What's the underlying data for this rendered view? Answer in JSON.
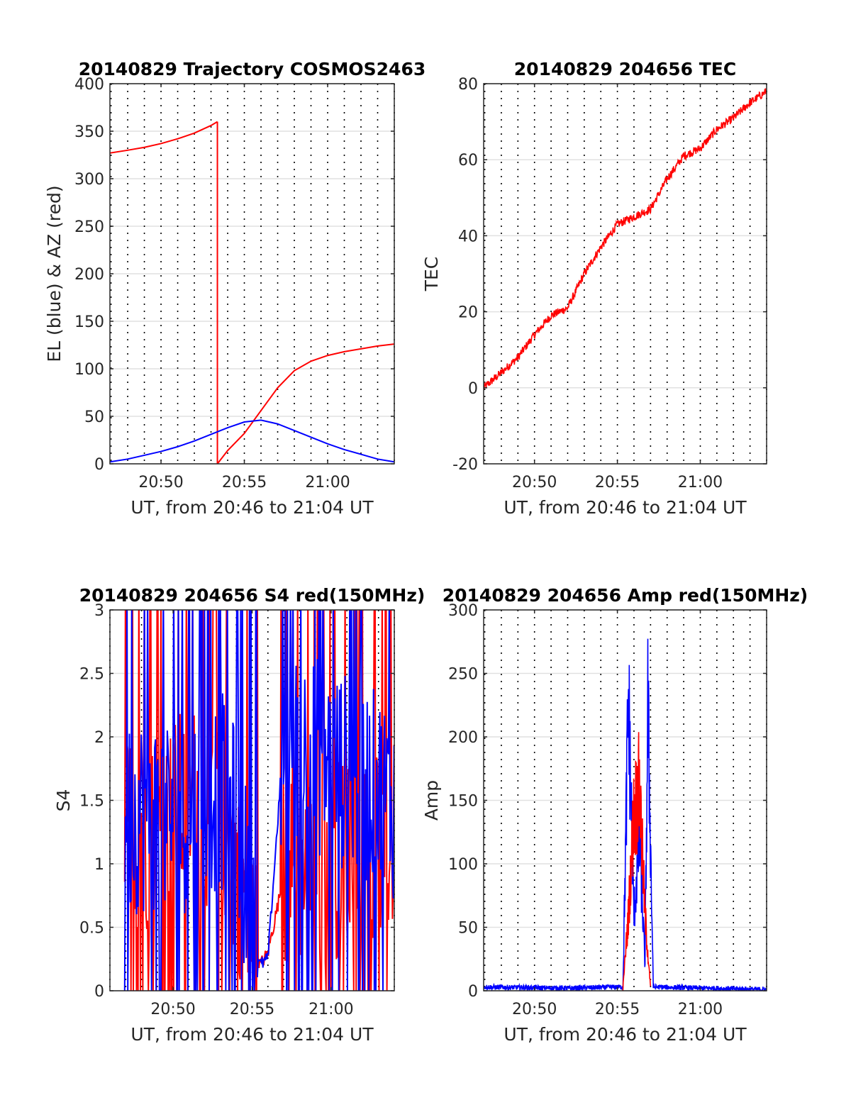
{
  "figure": {
    "background": "#ffffff"
  },
  "chart_data": [
    {
      "id": "trajectory",
      "type": "line",
      "title": "20140829 Trajectory COSMOS2463",
      "xlabel": "UT, from 20:46 to 21:04 UT",
      "ylabel": "EL (blue) & AZ (red)",
      "xlim": [
        "20:46:56",
        "21:04:00"
      ],
      "ylim": [
        0,
        400
      ],
      "xticks": [
        "20:50",
        "20:55",
        "21:00"
      ],
      "yticks": [
        "0",
        "50",
        "100",
        "150",
        "200",
        "250",
        "300",
        "350",
        "400"
      ],
      "grid": "horizontal solid, vertical dotted every minute",
      "series": [
        {
          "color": "#ff0000",
          "x": [
            "20:46:56",
            "20:48:00",
            "20:49:00",
            "20:50:00",
            "20:51:00",
            "20:52:00",
            "20:53:00",
            "20:53:23",
            "20:53:23",
            "20:54:00",
            "20:55:00",
            "20:56:00",
            "20:57:00",
            "20:58:00",
            "20:59:00",
            "21:00:00",
            "21:01:00",
            "21:02:00",
            "21:03:00",
            "21:04:00"
          ],
          "y": [
            327,
            330,
            333,
            337,
            342,
            348,
            356,
            360,
            0,
            14,
            32,
            56,
            80,
            98,
            108,
            114,
            118,
            121,
            124,
            126
          ]
        },
        {
          "color": "#0000ff",
          "x": [
            "20:46:56",
            "20:48:00",
            "20:49:00",
            "20:50:00",
            "20:51:00",
            "20:52:00",
            "20:53:00",
            "20:54:00",
            "20:55:00",
            "20:56:00",
            "20:57:00",
            "20:58:00",
            "20:59:00",
            "21:00:00",
            "21:01:00",
            "21:02:00",
            "21:03:00",
            "21:04:00"
          ],
          "y": [
            2,
            5,
            9,
            13,
            18,
            24,
            31,
            38,
            44,
            46,
            42,
            35,
            28,
            21,
            15,
            10,
            5,
            2
          ]
        }
      ]
    },
    {
      "id": "tec",
      "type": "line",
      "title": "20140829 204656 TEC",
      "xlabel": "UT, from 20:46 to 21:04 UT",
      "ylabel": "TEC",
      "xlim": [
        "20:46:56",
        "21:04:00"
      ],
      "ylim": [
        -20,
        80
      ],
      "xticks": [
        "20:50",
        "20:55",
        "21:00"
      ],
      "yticks": [
        "-20",
        "0",
        "20",
        "40",
        "60",
        "80"
      ],
      "grid": "horizontal solid, vertical dotted every minute",
      "series": [
        {
          "color": "#ff0000",
          "x": [
            "20:46:56",
            "20:48:00",
            "20:49:00",
            "20:50:00",
            "20:51:00",
            "20:52:00",
            "20:53:00",
            "20:54:00",
            "20:55:00",
            "20:56:00",
            "20:57:00",
            "20:58:00",
            "20:59:00",
            "21:00:00",
            "21:01:00",
            "21:02:00",
            "21:03:00",
            "21:04:00"
          ],
          "y": [
            0,
            4,
            8,
            14,
            19,
            21,
            30,
            37,
            43,
            45,
            47,
            55,
            61,
            63,
            68,
            71,
            75,
            78
          ]
        }
      ]
    },
    {
      "id": "s4",
      "type": "line",
      "title": "20140829 204656 S4 red(150MHz)",
      "xlabel": "UT, from 20:46 to 21:04 UT",
      "ylabel": "S4",
      "xlim": [
        "20:46:00",
        "21:04:00"
      ],
      "ylim": [
        0,
        3
      ],
      "xticks": [
        "20:50",
        "20:55",
        "21:00"
      ],
      "yticks": [
        "0",
        "0.5",
        "1",
        "1.5",
        "2",
        "2.5",
        "3"
      ],
      "grid": "horizontal solid, vertical dotted every minute",
      "series": [
        {
          "color": "#ff0000",
          "segments": [
            {
              "x": [
                "20:46:56",
                "20:49:00",
                "20:51:00",
                "20:53:00",
                "20:54:00",
                "20:55:30",
                "20:56:00",
                "20:57:00",
                "21:04:00"
              ],
              "y": [
                1.3,
                1.2,
                1.5,
                1.4,
                1.0,
                0.2,
                0.3,
                0.9,
                1.2
              ],
              "y_range": [
                0,
                3
              ]
            }
          ]
        },
        {
          "color": "#0000ff",
          "segments": [
            {
              "x": [
                "20:46:56",
                "20:49:00",
                "20:51:00",
                "20:53:00",
                "20:54:00",
                "20:55:30",
                "20:56:00",
                "20:57:00",
                "21:04:00"
              ],
              "y": [
                1.4,
                1.4,
                1.4,
                1.6,
                1.3,
                0.2,
                0.25,
                2.0,
                1.5
              ],
              "y_range": [
                0,
                3
              ]
            }
          ]
        }
      ]
    },
    {
      "id": "amp",
      "type": "line",
      "title": "20140829 204656 Amp red(150MHz)",
      "xlabel": "UT, from 20:46 to 21:04 UT",
      "ylabel": "Amp",
      "xlim": [
        "20:46:56",
        "21:04:00"
      ],
      "ylim": [
        0,
        300
      ],
      "xticks": [
        "20:50",
        "20:55",
        "21:00"
      ],
      "yticks": [
        "0",
        "50",
        "100",
        "150",
        "200",
        "250",
        "300"
      ],
      "grid": "horizontal solid, vertical dotted every minute",
      "series": [
        {
          "color": "#0000ff",
          "x": [
            "20:46:56",
            "20:52:00",
            "20:55:20",
            "20:55:40",
            "20:56:00",
            "20:56:20",
            "20:56:40",
            "20:56:50",
            "20:57:10",
            "21:04:00"
          ],
          "y": [
            3,
            2,
            3,
            230,
            60,
            120,
            20,
            225,
            3,
            1
          ]
        },
        {
          "color": "#ff0000",
          "x": [
            "20:55:20",
            "20:55:40",
            "20:56:00",
            "20:56:20",
            "20:56:40",
            "20:57:00"
          ],
          "y": [
            2,
            60,
            140,
            160,
            60,
            2
          ]
        }
      ]
    }
  ]
}
